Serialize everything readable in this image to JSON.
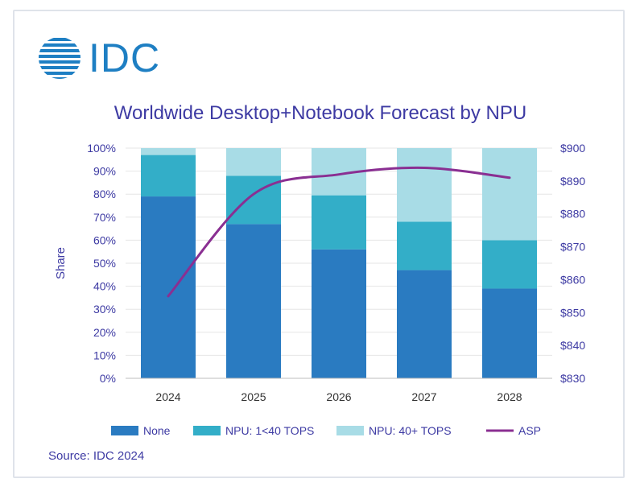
{
  "logo": {
    "text": "IDC"
  },
  "colors": {
    "none": "#2a7bc1",
    "npu_low": "#33aec8",
    "npu_high": "#a8dce6",
    "asp": "#8a2f92",
    "axis_text": "#3d3aa3",
    "grid": "#e6e6e6"
  },
  "chart_data": {
    "type": "bar",
    "stacked": true,
    "title": "Worldwide Desktop+Notebook Forecast by NPU",
    "ylabel": "Share",
    "categories": [
      "2024",
      "2025",
      "2026",
      "2027",
      "2028"
    ],
    "y_ticks": [
      "0%",
      "10%",
      "20%",
      "30%",
      "40%",
      "50%",
      "60%",
      "70%",
      "80%",
      "90%",
      "100%"
    ],
    "ylim": [
      0,
      100
    ],
    "y2_ticks": [
      "$830",
      "$840",
      "$850",
      "$860",
      "$870",
      "$880",
      "$890",
      "$900"
    ],
    "y2lim": [
      830,
      900
    ],
    "series": [
      {
        "name": "None",
        "values": [
          79,
          67,
          56,
          47,
          39
        ],
        "color": "#2a7bc1"
      },
      {
        "name": "NPU: 1<40 TOPS",
        "values": [
          18,
          21,
          23.5,
          21,
          21
        ],
        "color": "#33aec8"
      },
      {
        "name": "NPU: 40+ TOPS",
        "values": [
          3,
          12,
          20.5,
          32,
          40
        ],
        "color": "#a8dce6"
      }
    ],
    "line_series": {
      "name": "ASP",
      "axis": "right",
      "type": "line",
      "values": [
        855,
        886,
        892,
        894,
        891
      ],
      "color": "#8a2f92"
    },
    "grid": true,
    "legend_position": "bottom"
  },
  "footer": {
    "source": "Source: IDC 2024"
  }
}
